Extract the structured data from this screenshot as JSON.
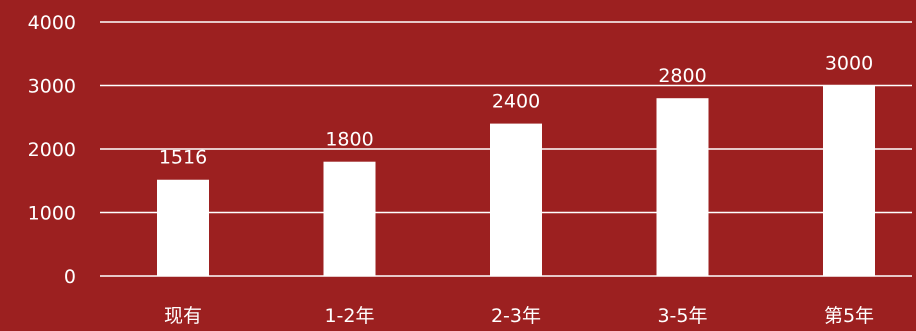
{
  "colors": {
    "background": "#9c2020",
    "bar": "#ffffff",
    "grid": "#ffffff",
    "text": "#ffffff"
  },
  "chart_data": {
    "type": "bar",
    "title": "",
    "xlabel": "",
    "ylabel": "",
    "categories": [
      "现有",
      "1-2年",
      "2-3年",
      "3-5年",
      "第5年"
    ],
    "values": [
      1516,
      1800,
      2400,
      2800,
      3000
    ],
    "data_labels": [
      "1516",
      "1800",
      "2400",
      "2800",
      "3000"
    ],
    "ylim": [
      0,
      4000
    ],
    "yticks": [
      0,
      1000,
      2000,
      3000,
      4000
    ],
    "ytick_labels": [
      "0",
      "1000",
      "2000",
      "3000",
      "4000"
    ],
    "grid": true,
    "legend": "none"
  }
}
